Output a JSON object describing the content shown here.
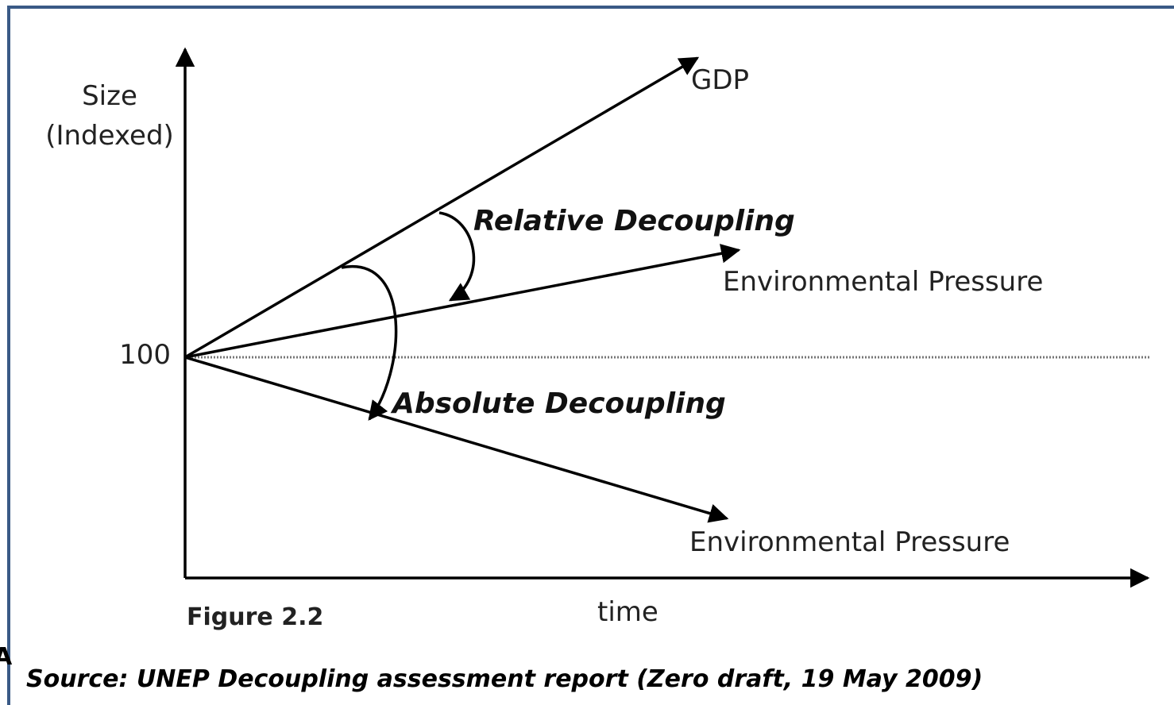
{
  "axes": {
    "y_label": [
      "Size",
      "(Indexed)"
    ],
    "baseline_label": 100,
    "x_label": "time"
  },
  "lines": [
    {
      "label": "GDP"
    },
    {
      "label": "Environmental Pressure"
    },
    {
      "label": "Environmental Pressure"
    }
  ],
  "annotations": [
    "Relative Decoupling",
    "Absolute Decoupling"
  ],
  "figure_label": "Figure 2.2",
  "edge_fragment": "A",
  "source": "Source: UNEP Decoupling assessment report (Zero draft, 19 May 2009)"
}
